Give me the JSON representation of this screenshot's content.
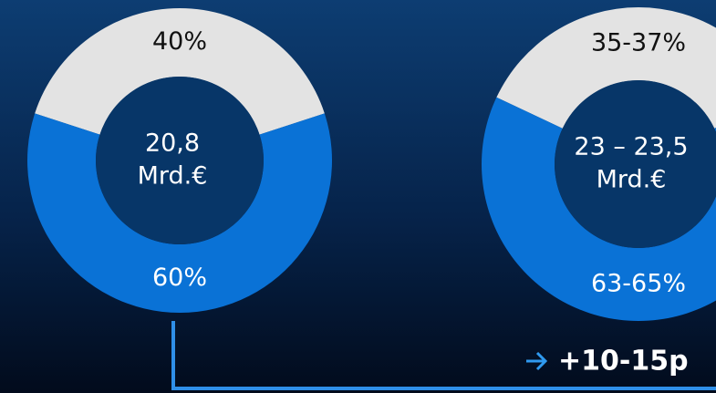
{
  "chart_data": [
    {
      "type": "pie",
      "donut": true,
      "values": [
        40,
        60
      ],
      "value_labels": [
        "40%",
        "60%"
      ],
      "colors": [
        "#e3e3e3",
        "#0a72d6"
      ],
      "label_colors": [
        "#111111",
        "#ffffff"
      ],
      "center_label": [
        "20,8",
        "Mrd.€"
      ]
    },
    {
      "type": "pie",
      "donut": true,
      "values": [
        36,
        64
      ],
      "value_labels": [
        "35-37%",
        "63-65%"
      ],
      "colors": [
        "#e3e3e3",
        "#0a72d6"
      ],
      "label_colors": [
        "#111111",
        "#ffffff"
      ],
      "center_label": [
        "23 – 23,5",
        "Mrd.€"
      ]
    }
  ],
  "annotation": "+10-15p"
}
